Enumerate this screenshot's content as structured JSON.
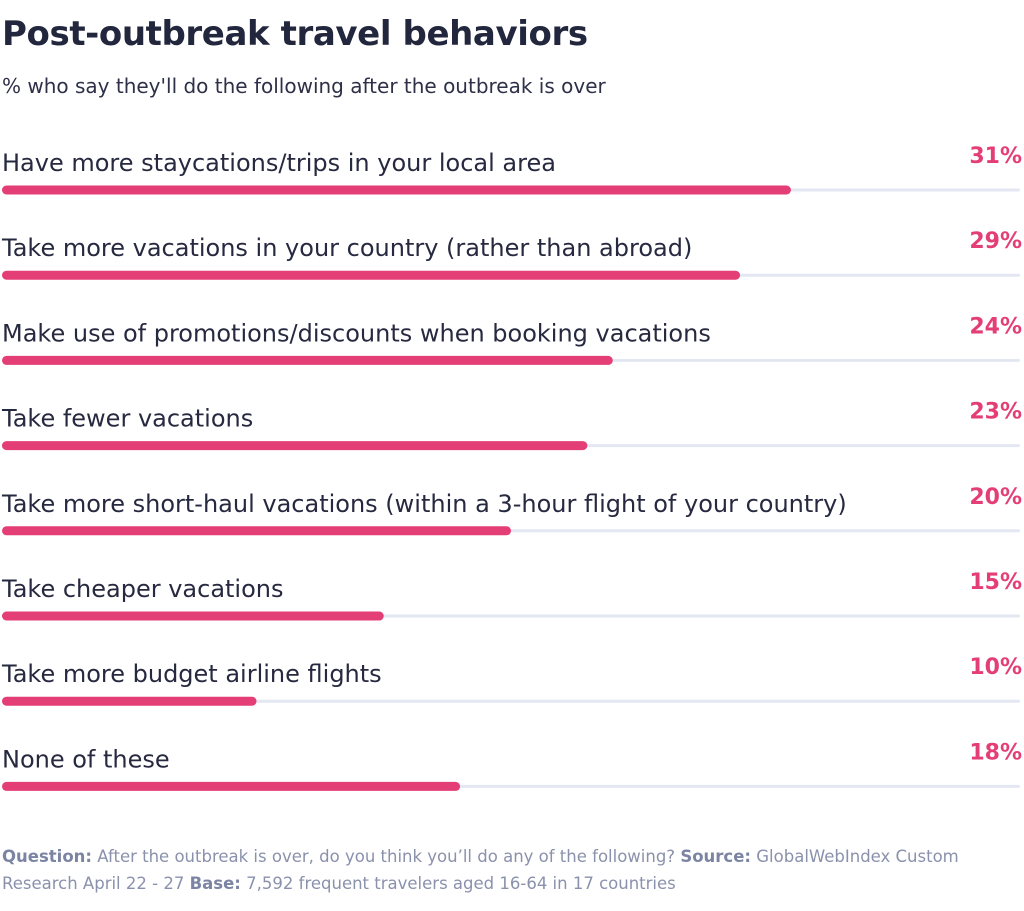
{
  "header": {
    "title": "Post-outbreak travel behaviors",
    "subtitle": "% who say they'll do the following after the outbreak is over"
  },
  "colors": {
    "bar": "#e43e76",
    "track": "#e3e7f1",
    "value_text": "#e43e76",
    "label_text": "#26293f",
    "footer_text": "#8a91ac"
  },
  "chart_data": {
    "type": "bar",
    "orientation": "horizontal",
    "title": "Post-outbreak travel behaviors",
    "subtitle": "% who say they'll do the following after the outbreak is over",
    "categories": [
      "Have more staycations/trips in your local area",
      "Take more vacations in your country (rather than abroad)",
      "Make use of promotions/discounts when booking vacations",
      "Take fewer vacations",
      "Take more short-haul vacations (within a 3-hour flight of your country)",
      "Take cheaper vacations",
      "Take more budget airline flights",
      "None of these"
    ],
    "values": [
      31,
      29,
      24,
      23,
      20,
      15,
      10,
      18
    ],
    "value_labels": [
      "31%",
      "29%",
      "24%",
      "23%",
      "20%",
      "15%",
      "10%",
      "18%"
    ],
    "unit": "%",
    "xlim": [
      0,
      40
    ],
    "grid": false,
    "legend": "none"
  },
  "footer": {
    "question_label": "Question:",
    "question_text": "After the outbreak is over, do you think you’ll do any of the following?",
    "source_label": "Source:",
    "source_text": "GlobalWebIndex Custom Research April 22 - 27",
    "base_label": "Base:",
    "base_text": "7,592 frequent travelers aged 16-64 in 17 countries"
  }
}
